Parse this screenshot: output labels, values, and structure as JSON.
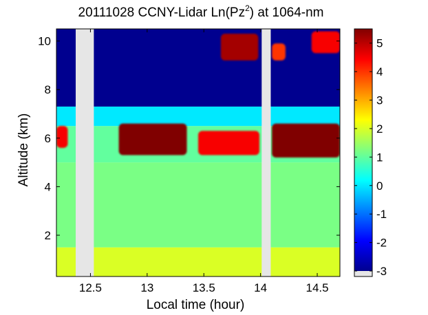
{
  "chart_data": {
    "type": "heatmap",
    "title_main": "20111028 CCNY-Lidar Ln(Pz",
    "title_sup": "2",
    "title_rest": ") at 1064-nm",
    "xlabel": "Local time (hour)",
    "ylabel": "Altitude (km)",
    "xlim": [
      12.2,
      14.7
    ],
    "ylim": [
      0.3,
      10.5
    ],
    "x_ticks": [
      12.5,
      13,
      13.5,
      14,
      14.5
    ],
    "x_tick_labels": [
      "12.5",
      "13",
      "13.5",
      "14",
      "14.5"
    ],
    "y_ticks": [
      2,
      4,
      6,
      8,
      10
    ],
    "y_tick_labels": [
      "2",
      "4",
      "6",
      "8",
      "10"
    ],
    "colorbar": {
      "colormap": "jet",
      "range": [
        -3,
        5.5
      ],
      "ticks": [
        -3,
        -2,
        -1,
        0,
        1,
        2,
        3,
        4,
        5
      ],
      "tick_labels": [
        "-3",
        "-2",
        "-1",
        "0",
        "1",
        "2",
        "3",
        "4",
        "5"
      ],
      "nodata_color": "#e6e6e6"
    },
    "data_gaps_hours": [
      [
        12.37,
        12.53
      ],
      [
        14.01,
        14.09
      ]
    ],
    "background_levels": [
      {
        "alt_range": [
          0.3,
          1.5
        ],
        "value": 2.0
      },
      {
        "alt_range": [
          1.5,
          5.0
        ],
        "value": 1.2
      },
      {
        "alt_range": [
          5.0,
          6.5
        ],
        "value": 1.0
      },
      {
        "alt_range": [
          6.5,
          7.3
        ],
        "value": 0.0
      },
      {
        "alt_range": [
          7.3,
          10.5
        ],
        "value": -3.0
      }
    ],
    "cloud_features": [
      {
        "name": "mid-level cloud 1",
        "time": [
          12.2,
          12.3
        ],
        "alt": [
          5.6,
          6.5
        ],
        "value": 4.5
      },
      {
        "name": "mid-level cloud 2",
        "time": [
          12.75,
          13.35
        ],
        "alt": [
          5.3,
          6.6
        ],
        "value": 5.5
      },
      {
        "name": "mid-level cloud 3",
        "time": [
          13.45,
          13.99
        ],
        "alt": [
          5.3,
          6.3
        ],
        "value": 4.5
      },
      {
        "name": "mid-level cloud 4",
        "time": [
          14.1,
          14.7
        ],
        "alt": [
          5.2,
          6.6
        ],
        "value": 5.5
      },
      {
        "name": "upper cloud 1",
        "time": [
          13.65,
          13.98
        ],
        "alt": [
          9.2,
          10.3
        ],
        "value": 5.2
      },
      {
        "name": "upper cloud 2",
        "time": [
          14.1,
          14.22
        ],
        "alt": [
          9.2,
          9.9
        ],
        "value": 4.0
      },
      {
        "name": "upper cloud 3",
        "time": [
          14.45,
          14.7
        ],
        "alt": [
          9.5,
          10.4
        ],
        "value": 4.5
      }
    ]
  }
}
